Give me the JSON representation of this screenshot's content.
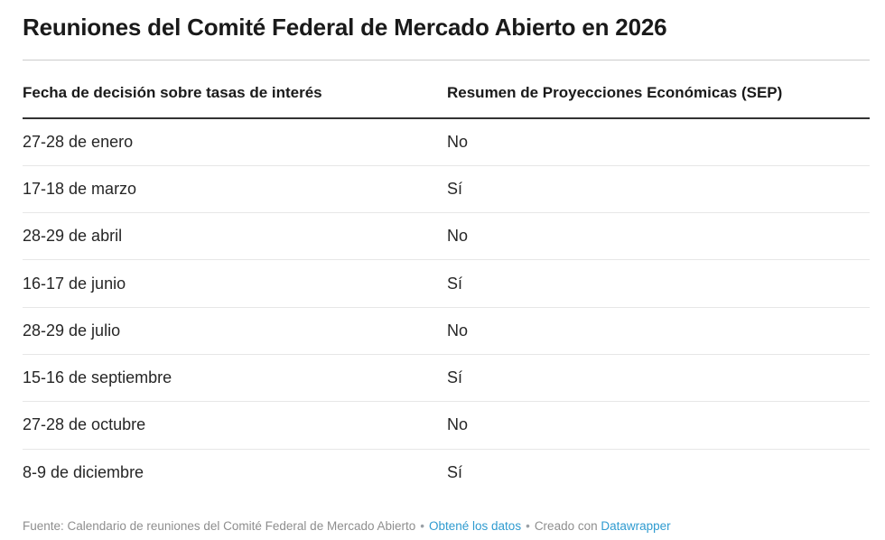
{
  "title": "Reuniones del Comité Federal de Mercado Abierto en 2026",
  "chart_data": {
    "type": "table",
    "title": "Reuniones del Comité Federal de Mercado Abierto en 2026",
    "columns": [
      "Fecha de decisión sobre tasas de interés",
      "Resumen de Proyecciones Económicas (SEP)"
    ],
    "rows": [
      [
        "27-28 de enero",
        "No"
      ],
      [
        "17-18 de marzo",
        "Sí"
      ],
      [
        "28-29 de abril",
        "No"
      ],
      [
        "16-17 de junio",
        "Sí"
      ],
      [
        "28-29 de julio",
        "No"
      ],
      [
        "15-16 de septiembre",
        "Sí"
      ],
      [
        "27-28 de octubre",
        "No"
      ],
      [
        "8-9 de diciembre",
        "Sí"
      ]
    ],
    "source": "Fuente: Calendario de reuniones del Comité Federal de Mercado Abierto"
  },
  "footer": {
    "source": "Fuente: Calendario de reuniones del Comité Federal de Mercado Abierto",
    "bullet": "•",
    "get_data_label": "Obtené los datos",
    "created_with_label": "Creado con",
    "datawrapper_label": "Datawrapper"
  },
  "colors": {
    "link_blue": "#2f9bd0",
    "header_rule": "#333333",
    "top_rule": "#cccccc",
    "row_rule": "#e7e7e7",
    "title_text": "#1a1a1a",
    "body_text": "#262626",
    "footer_text": "#8e8e8e"
  }
}
